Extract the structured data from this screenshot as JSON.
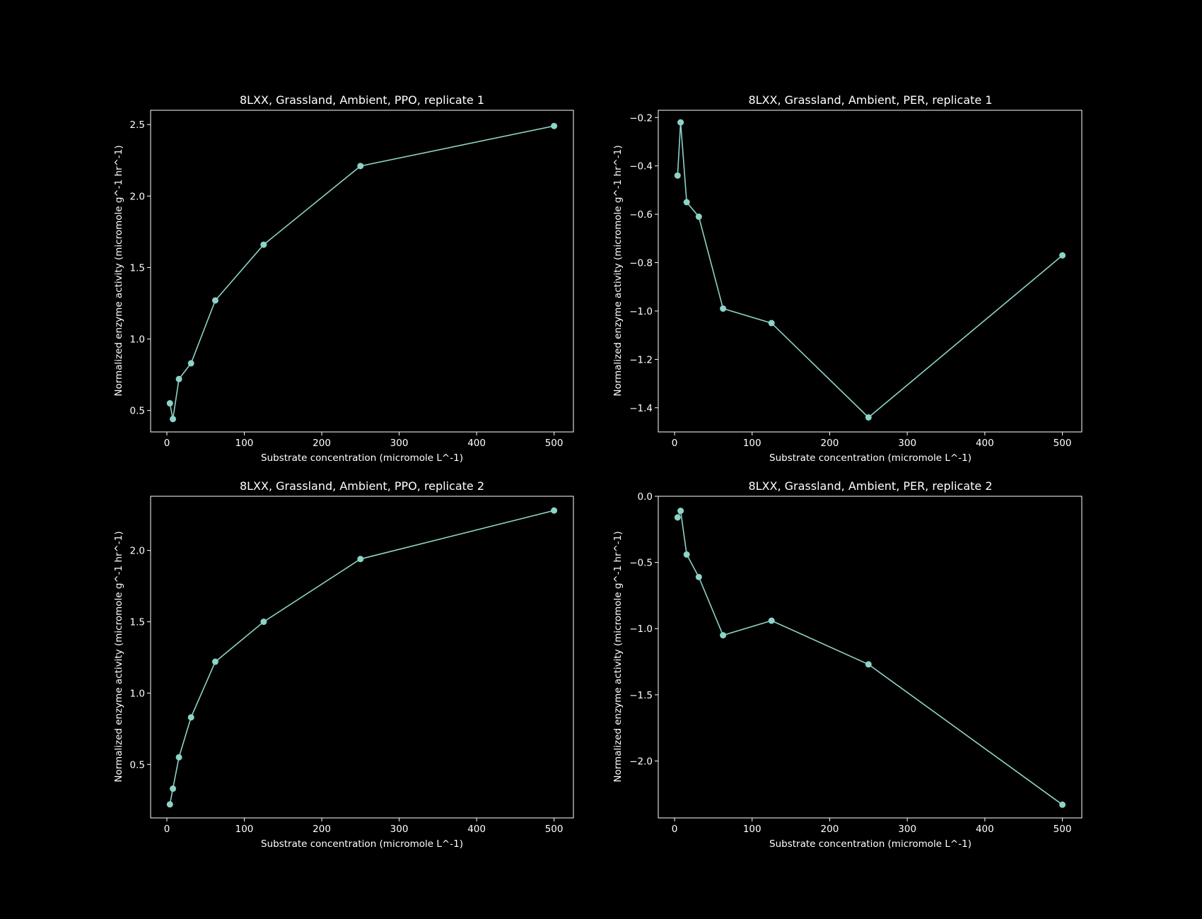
{
  "colors": {
    "background": "#000000",
    "foreground": "#ffffff",
    "series": "#8dd3c7"
  },
  "chart_data": [
    {
      "type": "line",
      "title": "8LXX, Grassland, Ambient, PPO, replicate 1",
      "xlabel": "Substrate concentration (micromole L^-1)",
      "ylabel": "Normalized enzyme activity (micromole g^-1 hr^-1)",
      "xlim": [
        -21,
        525
      ],
      "ylim": [
        0.35,
        2.6
      ],
      "xticks": [
        0,
        100,
        200,
        300,
        400,
        500
      ],
      "xtick_labels": [
        "0",
        "100",
        "200",
        "300",
        "400",
        "500"
      ],
      "yticks": [
        0.5,
        1.0,
        1.5,
        2.0,
        2.5
      ],
      "ytick_labels": [
        "0.5",
        "1.0",
        "1.5",
        "2.0",
        "2.5"
      ],
      "grid": false,
      "marker": "circle",
      "x": [
        3.9,
        7.8,
        15.6,
        31.25,
        62.5,
        125,
        250,
        500
      ],
      "y": [
        0.55,
        0.44,
        0.72,
        0.83,
        1.27,
        1.66,
        2.21,
        2.49
      ]
    },
    {
      "type": "line",
      "title": "8LXX, Grassland, Ambient, PER, replicate 1",
      "xlabel": "Substrate concentration (micromole L^-1)",
      "ylabel": "Normalized enzyme activity (micromole g^-1 hr^-1)",
      "xlim": [
        -21,
        525
      ],
      "ylim": [
        -1.5,
        -0.17
      ],
      "xticks": [
        0,
        100,
        200,
        300,
        400,
        500
      ],
      "xtick_labels": [
        "0",
        "100",
        "200",
        "300",
        "400",
        "500"
      ],
      "yticks": [
        -1.4,
        -1.2,
        -1.0,
        -0.8,
        -0.6,
        -0.4,
        -0.2
      ],
      "ytick_labels": [
        "−1.4",
        "−1.2",
        "−1.0",
        "−0.8",
        "−0.6",
        "−0.4",
        "−0.2"
      ],
      "grid": false,
      "marker": "circle",
      "x": [
        3.9,
        7.8,
        15.6,
        31.25,
        62.5,
        125,
        250,
        500
      ],
      "y": [
        -0.44,
        -0.22,
        -0.55,
        -0.61,
        -0.99,
        -1.05,
        -1.44,
        -0.77
      ]
    },
    {
      "type": "line",
      "title": "8LXX, Grassland, Ambient, PPO, replicate 2",
      "xlabel": "Substrate concentration (micromole L^-1)",
      "ylabel": "Normalized enzyme activity (micromole g^-1 hr^-1)",
      "xlim": [
        -21,
        525
      ],
      "ylim": [
        0.125,
        2.38
      ],
      "xticks": [
        0,
        100,
        200,
        300,
        400,
        500
      ],
      "xtick_labels": [
        "0",
        "100",
        "200",
        "300",
        "400",
        "500"
      ],
      "yticks": [
        0.5,
        1.0,
        1.5,
        2.0
      ],
      "ytick_labels": [
        "0.5",
        "1.0",
        "1.5",
        "2.0"
      ],
      "grid": false,
      "marker": "circle",
      "x": [
        3.9,
        7.8,
        15.6,
        31.25,
        62.5,
        125,
        250,
        500
      ],
      "y": [
        0.22,
        0.33,
        0.55,
        0.83,
        1.22,
        1.5,
        1.94,
        2.28
      ]
    },
    {
      "type": "line",
      "title": "8LXX, Grassland, Ambient, PER, replicate 2",
      "xlabel": "Substrate concentration (micromole L^-1)",
      "ylabel": "Normalized enzyme activity (micromole g^-1 hr^-1)",
      "xlim": [
        -21,
        525
      ],
      "ylim": [
        -2.43,
        0.0
      ],
      "xticks": [
        0,
        100,
        200,
        300,
        400,
        500
      ],
      "xtick_labels": [
        "0",
        "100",
        "200",
        "300",
        "400",
        "500"
      ],
      "yticks": [
        -2.0,
        -1.5,
        -1.0,
        -0.5,
        0.0
      ],
      "ytick_labels": [
        "−2.0",
        "−1.5",
        "−1.0",
        "−0.5",
        "0.0"
      ],
      "grid": false,
      "marker": "circle",
      "x": [
        3.9,
        7.8,
        15.6,
        31.25,
        62.5,
        125,
        250,
        500
      ],
      "y": [
        -0.16,
        -0.11,
        -0.44,
        -0.61,
        -1.05,
        -0.94,
        -1.27,
        -2.33
      ]
    }
  ]
}
